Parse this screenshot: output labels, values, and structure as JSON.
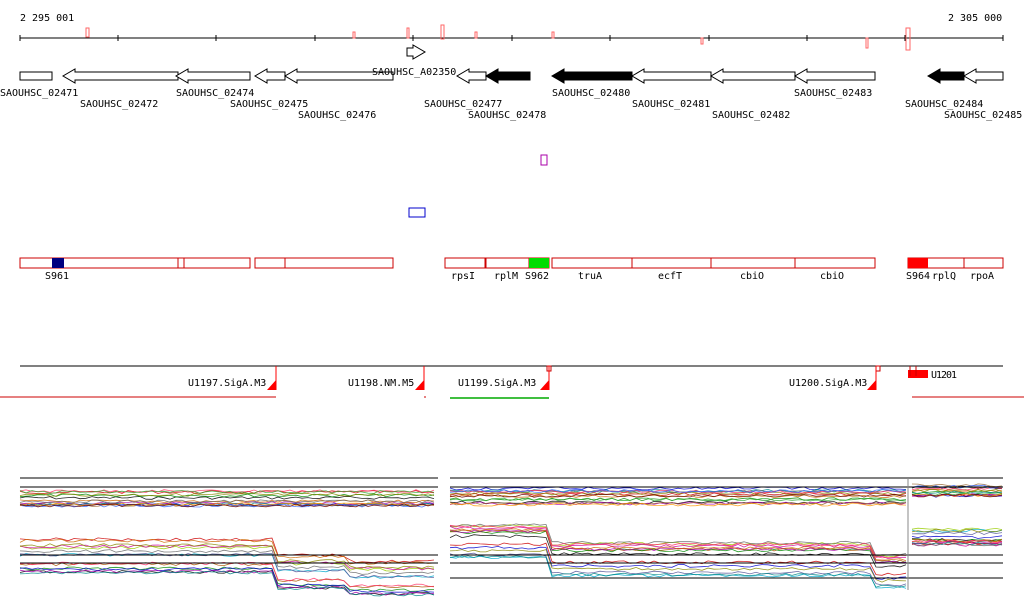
{
  "ruler": {
    "start_label": "2 295 001",
    "end_label": "2 305 000"
  },
  "genes": [
    {
      "label": "SAOUHSC_02471",
      "strand": "+",
      "fill": "white"
    },
    {
      "label": "SAOUHSC_02472",
      "strand": "-",
      "fill": "white"
    },
    {
      "label": "SAOUHSC_02474",
      "strand": "-",
      "fill": "white"
    },
    {
      "label": "SAOUHSC_02475",
      "strand": "-",
      "fill": "white"
    },
    {
      "label": "SAOUHSC_02476",
      "strand": "-",
      "fill": "white"
    },
    {
      "label": "SAOUHSC_A02350",
      "strand": "+",
      "fill": "white"
    },
    {
      "label": "SAOUHSC_02477",
      "strand": "-",
      "fill": "white"
    },
    {
      "label": "SAOUHSC_02478",
      "strand": "-",
      "fill": "black"
    },
    {
      "label": "SAOUHSC_02480",
      "strand": "-",
      "fill": "black"
    },
    {
      "label": "SAOUHSC_02481",
      "strand": "-",
      "fill": "white"
    },
    {
      "label": "SAOUHSC_02482",
      "strand": "-",
      "fill": "white"
    },
    {
      "label": "SAOUHSC_02483",
      "strand": "-",
      "fill": "white"
    },
    {
      "label": "SAOUHSC_02484",
      "strand": "-",
      "fill": "black"
    },
    {
      "label": "SAOUHSC_02485",
      "strand": "-",
      "fill": "white"
    }
  ],
  "features": [
    {
      "label": "S961"
    },
    {
      "label": "rpsI"
    },
    {
      "label": "rplM"
    },
    {
      "label": "S962"
    },
    {
      "label": "truA"
    },
    {
      "label": "ecfT"
    },
    {
      "label": "cbiO"
    },
    {
      "label": "cbiO"
    },
    {
      "label": "S964"
    },
    {
      "label": "rplQ"
    },
    {
      "label": "rpoA"
    }
  ],
  "transcription_units": [
    {
      "label": "U1197.SigA.M3"
    },
    {
      "label": "U1198.NM.M5"
    },
    {
      "label": "U1199.SigA.M3"
    },
    {
      "label": "U1200.SigA.M3"
    },
    {
      "label": "U1201"
    }
  ],
  "colors": {
    "gene_outline": "#000000",
    "feature_outline": "#cc0000",
    "tu_marker": "#ff0000",
    "s961": "#000080",
    "s962": "#00dd00",
    "s964": "#ff0000",
    "tile_box_blue": "#0000cc",
    "tile_box_purple": "#aa00aa"
  },
  "expression_tracks": {
    "series_count": 30
  }
}
